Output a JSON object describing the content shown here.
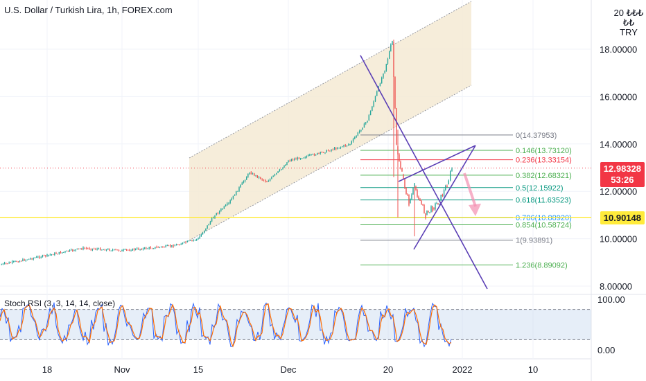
{
  "header": {
    "title": "U.S. Dollar / Turkish Lira, 1h, FOREX.com"
  },
  "currency": {
    "top": "20 ₺₺₺₺₺",
    "unit": "TRY"
  },
  "colors": {
    "channel_fill": "#f5ead3",
    "up": "#26a69a",
    "down": "#ef5350",
    "trendline": "#5b3fb5",
    "current_price": "#f23645",
    "yellow_line": "#ffeb3b",
    "rsi_k": "#2962ff",
    "rsi_d": "#ff6d00",
    "rsi_band": "#c8d9ef"
  },
  "price_labels": {
    "current": "12.98328",
    "countdown": "53:26",
    "yellow": "10.90148"
  },
  "rsi": {
    "label": "Stoch RSI (3, 3, 14, 14, close)",
    "ticks": [
      "100.00",
      "0.00"
    ]
  },
  "chart_data": {
    "type": "line",
    "title": "U.S. Dollar / Turkish Lira, 1h, FOREX.com",
    "y_ticks": [
      "18.00000",
      "16.00000",
      "14.00000",
      "12.00000",
      "10.00000",
      "8.00000"
    ],
    "ylim": [
      7.7,
      20.2
    ],
    "x_ticks": [
      "18",
      "Nov",
      "15",
      "Dec",
      "20",
      "2022",
      "10"
    ],
    "price_series": [
      [
        "Oct 8",
        8.9
      ],
      [
        "Oct 18",
        9.3
      ],
      [
        "Oct 25",
        9.6
      ],
      [
        "Nov 1",
        9.5
      ],
      [
        "Nov 10",
        9.7
      ],
      [
        "Nov 15",
        10.0
      ],
      [
        "Nov 17",
        11.0
      ],
      [
        "Nov 19",
        11.5
      ],
      [
        "Nov 23",
        12.8
      ],
      [
        "Nov 25",
        12.4
      ],
      [
        "Nov 30",
        13.0
      ],
      [
        "Dec 1",
        13.3
      ],
      [
        "Dec 7",
        13.6
      ],
      [
        "Dec 13",
        14.0
      ],
      [
        "Dec 16",
        15.0
      ],
      [
        "Dec 19",
        17.0
      ],
      [
        "Dec 20",
        18.3
      ],
      [
        "Dec 21",
        13.9
      ],
      [
        "Dec 22",
        12.7
      ],
      [
        "Dec 23",
        11.5
      ],
      [
        "Dec 24",
        12.2
      ],
      [
        "Dec 25",
        11.6
      ],
      [
        "Dec 26",
        11.0
      ],
      [
        "Dec 27",
        11.3
      ],
      [
        "Dec 28",
        11.6
      ],
      [
        "Dec 29",
        12.3
      ],
      [
        "Dec 30",
        12.98
      ]
    ],
    "fibonacci": [
      {
        "label": "0(14.37953)",
        "value": 14.37953,
        "color": "#787b86"
      },
      {
        "label": "0.146(13.73120)",
        "value": 13.7312,
        "color": "#4caf50"
      },
      {
        "label": "0.236(13.33154)",
        "value": 13.33154,
        "color": "#f23645"
      },
      {
        "label": "0.382(12.68321)",
        "value": 12.68321,
        "color": "#4caf50"
      },
      {
        "label": "0.5(12.15922)",
        "value": 12.15922,
        "color": "#089981"
      },
      {
        "label": "0.618(11.63523)",
        "value": 11.63523,
        "color": "#089981"
      },
      {
        "label": "0.786(10.88920)",
        "value": 10.8892,
        "color": "#2196f3"
      },
      {
        "label": "0.854(10.58724)",
        "value": 10.58724,
        "color": "#4caf50"
      },
      {
        "label": "1(9.93891)",
        "value": 9.93891,
        "color": "#787b86"
      },
      {
        "label": "1.236(8.89092)",
        "value": 8.89092,
        "color": "#4caf50"
      }
    ],
    "levels": {
      "current": 12.98328,
      "yellow": 10.90148
    }
  }
}
